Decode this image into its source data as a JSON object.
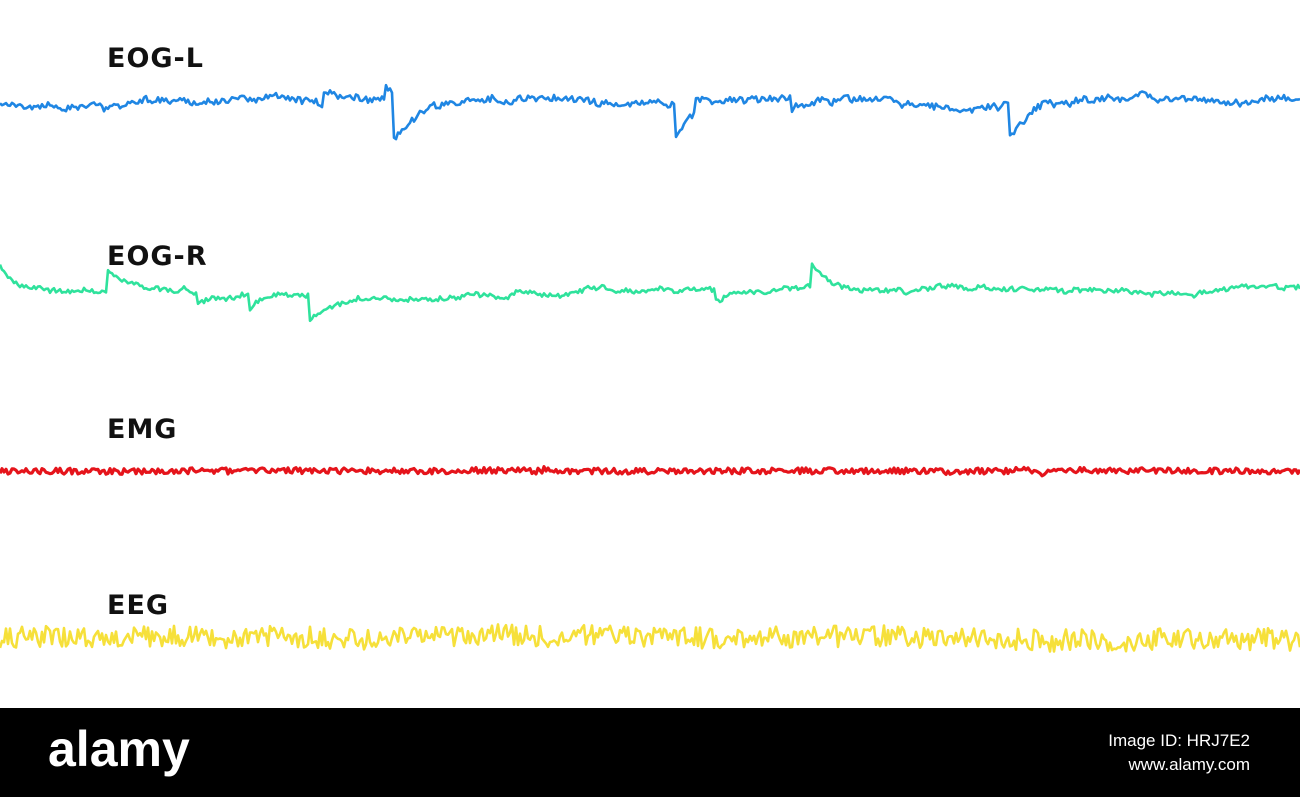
{
  "traces": [
    {
      "label": "EOG-L",
      "color": "#1f86e3"
    },
    {
      "label": "EOG-R",
      "color": "#2fe29c"
    },
    {
      "label": "EMG",
      "color": "#e5141b"
    },
    {
      "label": "EEG",
      "color": "#f6e03a"
    }
  ],
  "footer": {
    "logo": "alamy",
    "image_id": "Image ID: HRJ7E2",
    "url": "www.alamy.com"
  }
}
